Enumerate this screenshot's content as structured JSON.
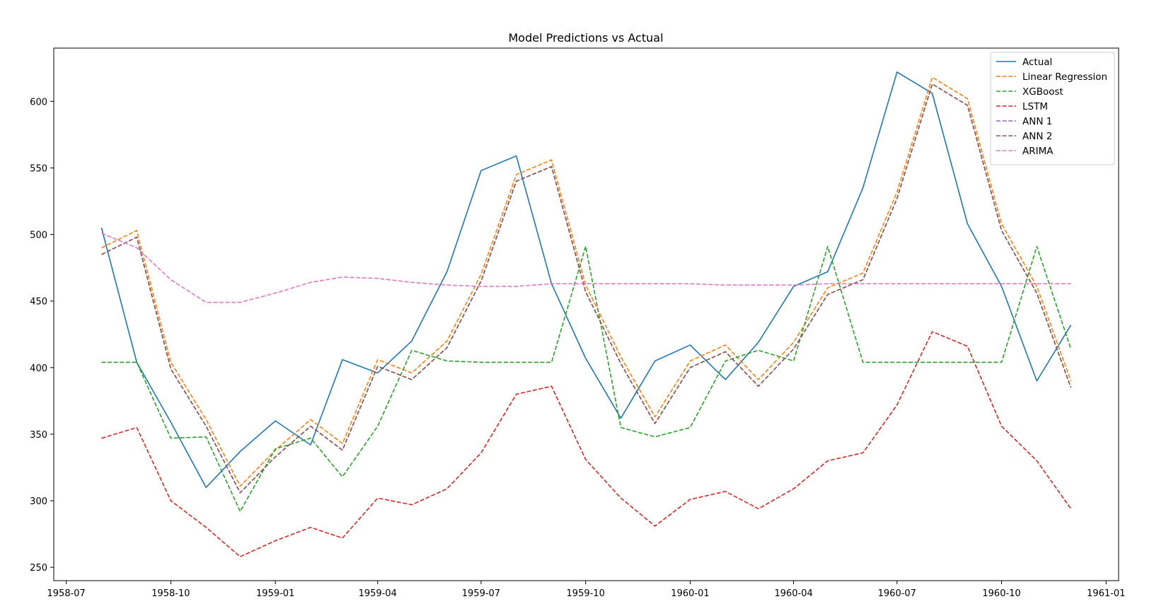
{
  "chart_data": {
    "type": "line",
    "title": "Model Predictions vs Actual",
    "xlabel": "",
    "ylabel": "",
    "x_axis": "date",
    "xlim": [
      "1958-06-20",
      "1961-01-12"
    ],
    "ylim": [
      240,
      640
    ],
    "x_ticks": [
      "1958-07",
      "1958-10",
      "1959-01",
      "1959-04",
      "1959-07",
      "1959-10",
      "1960-01",
      "1960-04",
      "1960-07",
      "1960-10",
      "1961-01"
    ],
    "y_ticks": [
      250,
      300,
      350,
      400,
      450,
      500,
      550,
      600
    ],
    "grid": false,
    "legend_position": "top-right",
    "x": [
      "1958-08-01",
      "1958-09-01",
      "1958-10-01",
      "1958-11-01",
      "1958-12-01",
      "1959-01-01",
      "1959-02-01",
      "1959-03-01",
      "1959-04-01",
      "1959-05-01",
      "1959-06-01",
      "1959-07-01",
      "1959-08-01",
      "1959-09-01",
      "1959-10-01",
      "1959-11-01",
      "1959-12-01",
      "1960-01-01",
      "1960-02-01",
      "1960-03-01",
      "1960-04-01",
      "1960-05-01",
      "1960-06-01",
      "1960-07-01",
      "1960-08-01",
      "1960-09-01",
      "1960-10-01",
      "1960-11-01",
      "1960-12-01"
    ],
    "series": [
      {
        "name": "Actual",
        "color": "#1f77b4",
        "dashed": false,
        "values": [
          505,
          404,
          359,
          310,
          337,
          360,
          342,
          406,
          396,
          420,
          472,
          548,
          559,
          463,
          407,
          362,
          405,
          417,
          391,
          419,
          461,
          472,
          535,
          622,
          606,
          508,
          461,
          390,
          432
        ]
      },
      {
        "name": "Linear Regression",
        "color": "#ff7f0e",
        "dashed": true,
        "values": [
          490,
          503,
          404,
          361,
          311,
          338,
          361,
          343,
          406,
          396,
          420,
          470,
          545,
          556,
          462,
          408,
          363,
          405,
          417,
          391,
          419,
          460,
          471,
          532,
          618,
          602,
          508,
          461,
          390
        ]
      },
      {
        "name": "XGBoost",
        "color": "#2ca02c",
        "dashed": true,
        "values": [
          404,
          404,
          347,
          348,
          292,
          339,
          347,
          318,
          356,
          413,
          405,
          404,
          404,
          404,
          491,
          355,
          348,
          355,
          405,
          413,
          405,
          491,
          404,
          404,
          404,
          404,
          404,
          491,
          414
        ]
      },
      {
        "name": "LSTM",
        "color": "#d62728",
        "dashed": true,
        "values": [
          347,
          355,
          300,
          280,
          258,
          270,
          280,
          272,
          302,
          297,
          309,
          336,
          380,
          386,
          331,
          302,
          281,
          301,
          307,
          294,
          309,
          330,
          336,
          372,
          427,
          416,
          356,
          330,
          294
        ]
      },
      {
        "name": "ANN 1",
        "color": "#9467bd",
        "dashed": true,
        "values": [
          485,
          498,
          399,
          356,
          306,
          333,
          356,
          338,
          401,
          391,
          415,
          465,
          540,
          551,
          457,
          403,
          358,
          400,
          412,
          386,
          414,
          455,
          466,
          527,
          613,
          597,
          503,
          456,
          385
        ]
      },
      {
        "name": "ANN 2",
        "color": "#8c564b",
        "dashed": true,
        "values": [
          485,
          498,
          399,
          356,
          306,
          333,
          356,
          338,
          401,
          391,
          415,
          465,
          540,
          551,
          457,
          403,
          358,
          400,
          412,
          386,
          414,
          455,
          466,
          527,
          613,
          597,
          503,
          456,
          385
        ]
      },
      {
        "name": "ARIMA",
        "color": "#e377c2",
        "dashed": true,
        "values": [
          501,
          490,
          466,
          449,
          449,
          456,
          464,
          468,
          467,
          464,
          462,
          461,
          461,
          463,
          463,
          463,
          463,
          463,
          462,
          462,
          462,
          463,
          463,
          463,
          463,
          463,
          463,
          463,
          463
        ]
      }
    ]
  }
}
